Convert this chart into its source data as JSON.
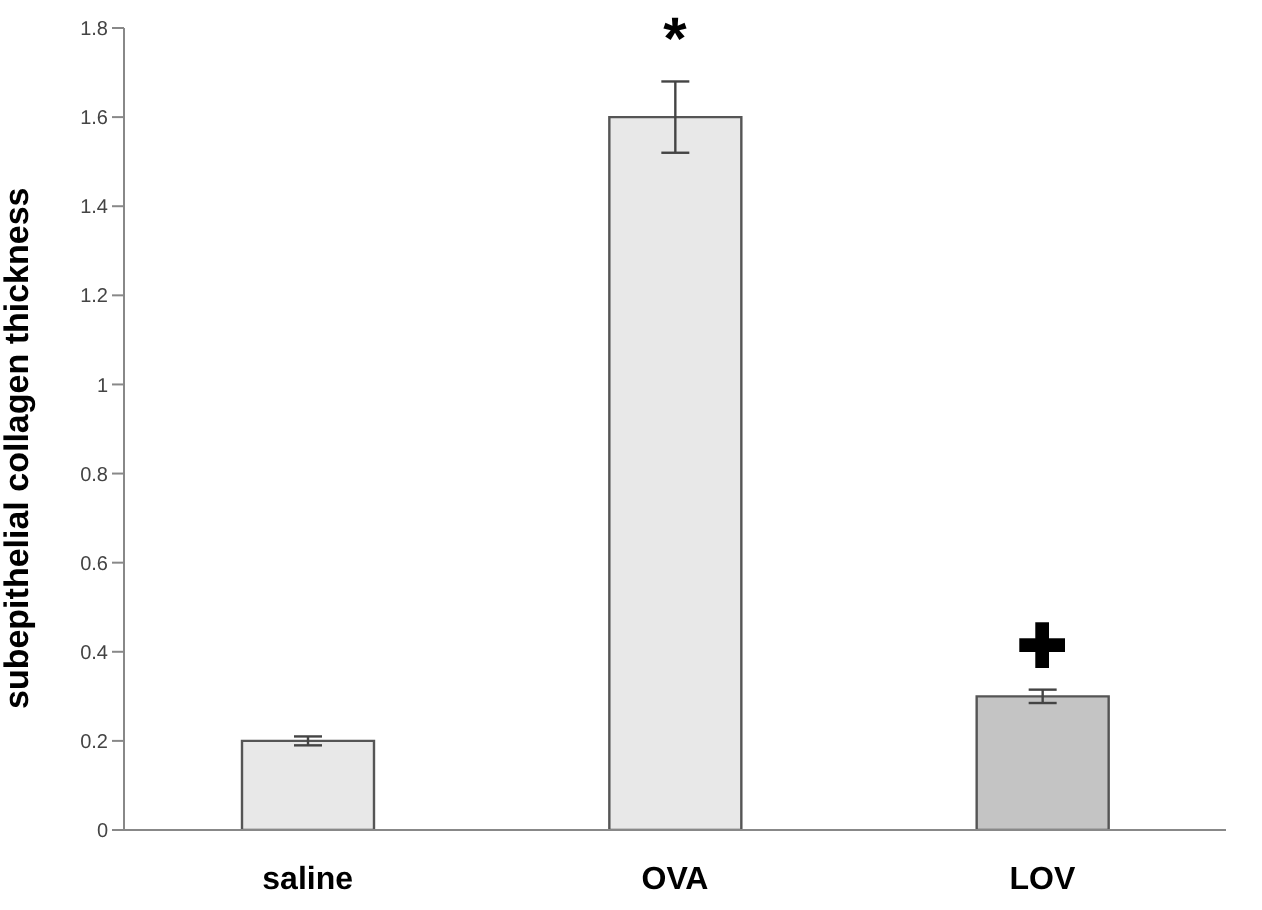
{
  "chart_data": {
    "type": "bar",
    "ylabel": "subepithelial collagen thickness",
    "categories": [
      "saline",
      "OVA",
      "LOV"
    ],
    "values": [
      0.2,
      1.6,
      0.3
    ],
    "colors": [
      "#e8e8e8",
      "#e8e8e8",
      "#c4c4c4"
    ],
    "errors": [
      0.01,
      0.08,
      0.015
    ],
    "ylim": [
      0,
      1.8
    ],
    "yticks": [
      0,
      0.2,
      0.4,
      0.6,
      0.8,
      1,
      1.2,
      1.4,
      1.6,
      1.8
    ],
    "grid": false,
    "legend": false,
    "annotations": [
      "*",
      "✚"
    ]
  }
}
